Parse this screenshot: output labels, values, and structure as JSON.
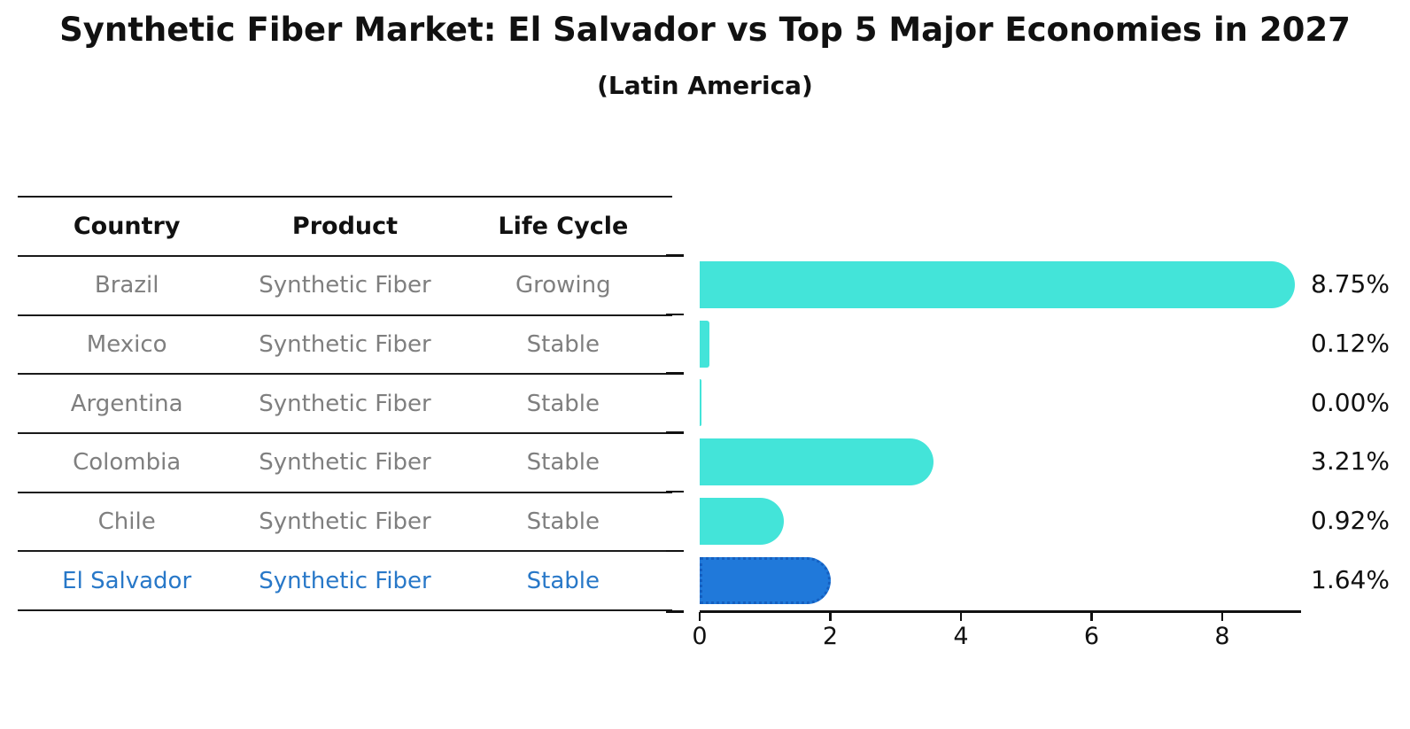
{
  "title": "Synthetic Fiber Market: El Salvador vs Top 5 Major Economies in 2027",
  "subtitle": "(Latin America)",
  "table": {
    "headers": [
      "Country",
      "Product",
      "Life Cycle"
    ],
    "rows": [
      {
        "country": "Brazil",
        "product": "Synthetic Fiber",
        "life_cycle": "Growing",
        "highlight": false
      },
      {
        "country": "Mexico",
        "product": "Synthetic Fiber",
        "life_cycle": "Stable",
        "highlight": false
      },
      {
        "country": "Argentina",
        "product": "Synthetic Fiber",
        "life_cycle": "Stable",
        "highlight": false
      },
      {
        "country": "Colombia",
        "product": "Synthetic Fiber",
        "life_cycle": "Stable",
        "highlight": false
      },
      {
        "country": "Chile",
        "product": "Synthetic Fiber",
        "life_cycle": "Stable",
        "highlight": false
      },
      {
        "country": "El Salvador",
        "product": "Synthetic Fiber",
        "life_cycle": "Stable",
        "highlight": true
      }
    ]
  },
  "chart_data": {
    "type": "bar",
    "orientation": "horizontal",
    "title": "Synthetic Fiber Market: El Salvador vs Top 5 Major Economies in 2027 (Latin America)",
    "categories": [
      "Brazil",
      "Mexico",
      "Argentina",
      "Colombia",
      "Chile",
      "El Salvador"
    ],
    "values": [
      8.75,
      0.12,
      0.0,
      3.21,
      0.92,
      1.64
    ],
    "value_labels": [
      "8.75%",
      "0.12%",
      "0.00%",
      "3.21%",
      "0.92%",
      "1.64%"
    ],
    "xlabel": "",
    "ylabel": "",
    "xlim": [
      0,
      9.2
    ],
    "xticks": [
      0,
      2,
      4,
      6,
      8
    ],
    "grid": false,
    "legend": false,
    "bar_color": "#43E4D9",
    "highlight_index": 5,
    "highlight_color": "#2079DA",
    "highlight_border_color": "#155FC0",
    "highlight_text_color": "#2878C8",
    "text_color": "#111111",
    "table_text_color": "#7f7f7f"
  }
}
